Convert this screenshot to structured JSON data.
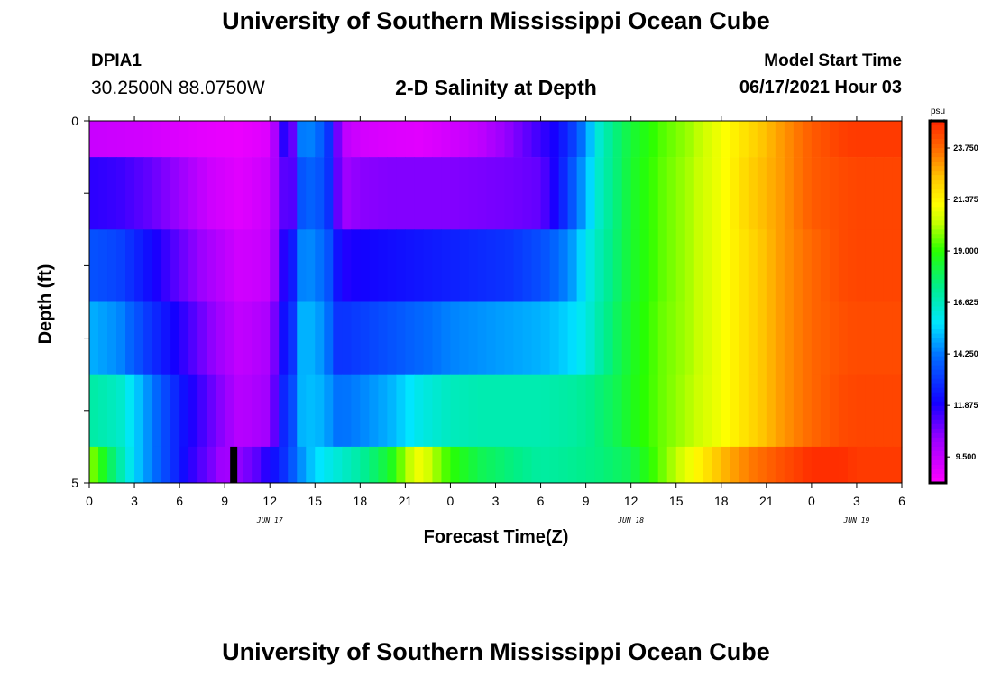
{
  "header": {
    "title": "University of Southern Mississippi Ocean Cube",
    "station_id": "DPIA1",
    "station_coords": "30.2500N  88.0750W",
    "model_label": "Model Start Time",
    "model_time": "06/17/2021 Hour 03",
    "footer_title": "University of Southern Mississippi Ocean Cube"
  },
  "chart_data": {
    "type": "heatmap",
    "title": "2-D Salinity at Depth",
    "xlabel": "Forecast Time(Z)",
    "ylabel": "Depth (ft)",
    "x_tick_labels": [
      "0",
      "3",
      "6",
      "9",
      "12",
      "15",
      "18",
      "21",
      "0",
      "3",
      "6",
      "9",
      "12",
      "15",
      "18",
      "21",
      "0",
      "3",
      "6"
    ],
    "date_labels": [
      {
        "label": "JUN 17",
        "at_tick": 4
      },
      {
        "label": "JUN 18",
        "at_tick": 12
      },
      {
        "label": "JUN 19",
        "at_tick": 17
      }
    ],
    "y_tick_labels": [
      "0",
      "5"
    ],
    "ylim": [
      0,
      5
    ],
    "colorbar": {
      "unit": "psu",
      "tick_labels": [
        "9.500",
        "11.875",
        "14.250",
        "16.625",
        "19.000",
        "21.375",
        "23.750"
      ],
      "range": [
        8.3,
        25.0
      ]
    },
    "row_depths_ft": [
      0.25,
      0.75,
      1.75,
      2.75,
      3.75,
      4.75
    ],
    "series": [
      {
        "depth_ft": 0.25,
        "time_hours": [
          0,
          2,
          4,
          6,
          8,
          10,
          12,
          13,
          13.5,
          14,
          15,
          16,
          16.5,
          17,
          18,
          20,
          22,
          24,
          26,
          28,
          30,
          31,
          32,
          33,
          34,
          35,
          36,
          38,
          40,
          42,
          44,
          46,
          48,
          50,
          51
        ],
        "values": [
          9.4,
          9.3,
          9.2,
          9.0,
          8.8,
          8.7,
          9.0,
          12.0,
          11.0,
          14.3,
          14.4,
          12.8,
          10.8,
          9.6,
          9.2,
          9.0,
          8.9,
          9.2,
          9.6,
          10.5,
          11.5,
          12.0,
          13.0,
          14.6,
          16.5,
          17.5,
          18.3,
          19.3,
          20.0,
          21.0,
          22.0,
          23.0,
          24.0,
          24.5,
          24.6
        ]
      },
      {
        "depth_ft": 0.75,
        "time_hours": [
          0,
          2,
          4,
          6,
          8,
          10,
          12,
          13,
          13.5,
          14,
          15,
          16,
          16.5,
          17,
          18,
          20,
          22,
          24,
          26,
          28,
          30,
          31,
          32,
          33,
          34,
          35,
          36,
          38,
          40,
          42,
          44,
          46,
          48,
          50,
          51
        ],
        "values": [
          11.7,
          11.5,
          11.0,
          10.3,
          9.3,
          8.9,
          9.4,
          11.3,
          11.2,
          13.6,
          14.0,
          12.8,
          11.0,
          10.2,
          10.5,
          10.6,
          10.6,
          10.6,
          10.7,
          10.8,
          11.0,
          12.0,
          13.5,
          15.0,
          16.6,
          17.5,
          18.4,
          19.4,
          20.1,
          21.0,
          22.2,
          23.0,
          24.0,
          24.3,
          24.4
        ]
      },
      {
        "depth_ft": 1.75,
        "time_hours": [
          0,
          2,
          4,
          6,
          8,
          10,
          12,
          13,
          13.5,
          14,
          15,
          16,
          16.5,
          17,
          18,
          20,
          22,
          24,
          26,
          28,
          30,
          31,
          32,
          33,
          34,
          35,
          36,
          38,
          40,
          42,
          44,
          46,
          48,
          50,
          51
        ],
        "values": [
          13.6,
          13.3,
          12.2,
          11.0,
          10.0,
          9.2,
          9.5,
          12.0,
          12.5,
          14.4,
          14.5,
          13.5,
          12.3,
          11.8,
          12.0,
          12.2,
          12.4,
          12.6,
          12.8,
          13.0,
          13.5,
          14.0,
          14.6,
          15.8,
          16.8,
          17.6,
          18.4,
          19.4,
          20.1,
          21.0,
          22.0,
          23.0,
          23.8,
          24.3,
          24.4
        ]
      },
      {
        "depth_ft": 2.75,
        "time_hours": [
          0,
          2,
          4,
          6,
          8,
          10,
          12,
          13,
          13.5,
          14,
          15,
          16,
          16.5,
          17,
          18,
          20,
          22,
          24,
          26,
          28,
          30,
          31,
          32,
          33,
          34,
          35,
          36,
          38,
          40,
          42,
          44,
          46,
          48,
          50,
          51
        ],
        "values": [
          15.0,
          14.5,
          13.0,
          11.8,
          10.5,
          9.5,
          10.0,
          12.5,
          13.0,
          15.0,
          15.0,
          14.0,
          13.0,
          13.0,
          13.2,
          13.6,
          14.0,
          14.4,
          14.6,
          14.8,
          15.0,
          15.2,
          15.5,
          16.0,
          17.0,
          17.8,
          18.5,
          19.5,
          20.1,
          21.0,
          22.0,
          23.0,
          23.8,
          24.2,
          24.3
        ]
      },
      {
        "depth_ft": 3.75,
        "time_hours": [
          0,
          2,
          4,
          6,
          8,
          10,
          12,
          13,
          13.5,
          14,
          15,
          16,
          16.5,
          17,
          18,
          20,
          22,
          24,
          26,
          28,
          30,
          31,
          32,
          33,
          34,
          35,
          36,
          38,
          40,
          42,
          44,
          46,
          48,
          50,
          51
        ],
        "values": [
          17.0,
          16.5,
          14.5,
          12.5,
          11.0,
          9.7,
          10.2,
          13.0,
          13.5,
          15.0,
          15.2,
          14.6,
          14.2,
          14.2,
          14.4,
          15.0,
          16.0,
          16.6,
          16.8,
          16.8,
          16.8,
          16.9,
          17.0,
          17.2,
          17.6,
          18.0,
          18.6,
          19.5,
          20.2,
          21.0,
          22.0,
          23.0,
          23.8,
          24.3,
          24.4
        ]
      },
      {
        "depth_ft": 4.75,
        "time_hours": [
          0,
          1,
          2,
          3,
          4,
          5,
          6,
          7,
          8,
          9,
          10,
          11,
          12,
          13,
          14,
          15,
          16,
          17,
          18,
          20,
          21,
          22,
          24,
          26,
          28,
          30,
          32,
          34,
          36,
          38,
          40,
          42,
          44,
          46,
          48,
          50,
          51
        ],
        "values": [
          20.0,
          18.5,
          17.0,
          15.5,
          14.5,
          13.5,
          12.5,
          11.5,
          10.8,
          10.0,
          10.5,
          11.0,
          12.0,
          13.0,
          14.5,
          15.5,
          16.0,
          16.5,
          17.0,
          18.5,
          20.0,
          21.0,
          19.0,
          18.0,
          17.5,
          17.0,
          17.2,
          17.5,
          18.0,
          19.5,
          21.0,
          22.5,
          23.5,
          24.2,
          24.8,
          24.8,
          24.6
        ]
      }
    ],
    "missing_cells": [
      {
        "depth_ft": 4.75,
        "time_hours": 9.6
      }
    ]
  }
}
